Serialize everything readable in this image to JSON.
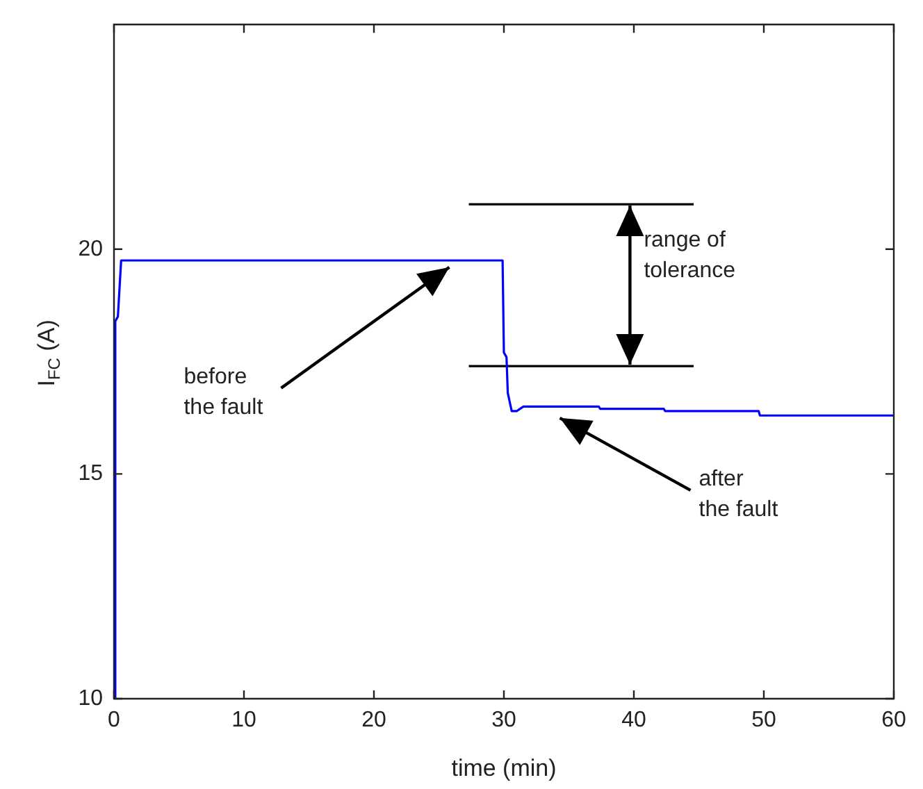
{
  "chart_data": {
    "type": "line",
    "xlabel": "time (min)",
    "ylabel": "I$_{FC}$ (A)",
    "xlim": [
      0,
      60
    ],
    "xticks": [
      0,
      10,
      20,
      30,
      40,
      50,
      60
    ],
    "ylim": [
      10,
      25
    ],
    "yticks": [
      10,
      15,
      20
    ],
    "marker": "none",
    "line_style": "solid",
    "series": [
      {
        "color": "#0000ff",
        "x": [
          0,
          0.1,
          0.3,
          0.55,
          29.9,
          30.0,
          30.2,
          30.3,
          30.6,
          31.0,
          31.5,
          37.3,
          37.4,
          42.3,
          42.4,
          49.6,
          49.7,
          60
        ],
        "values": [
          10,
          18.4,
          18.5,
          19.75,
          19.75,
          17.7,
          17.6,
          16.8,
          16.4,
          16.4,
          16.5,
          16.5,
          16.45,
          16.45,
          16.4,
          16.4,
          16.3,
          16.3
        ]
      },
      {
        "color": "#000000",
        "x": [
          27.3,
          44.6
        ],
        "values": [
          21,
          21
        ]
      },
      {
        "color": "#000000",
        "x": [
          27.3,
          44.6
        ],
        "values": [
          17.4,
          17.4
        ]
      }
    ],
    "annotations": [
      {
        "text": "range of tolerance",
        "x": 39.7,
        "y": 21
      },
      {
        "text": "before the fault",
        "x": 25.8,
        "y": 19.6
      },
      "after the fault"
    ]
  }
}
